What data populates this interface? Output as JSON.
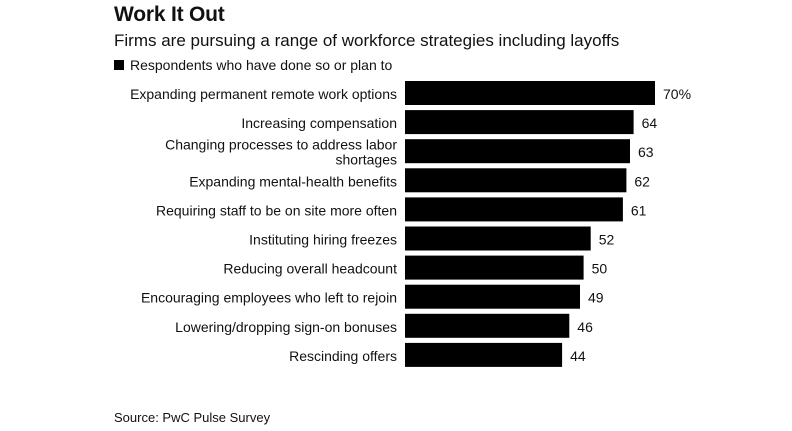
{
  "title": "Work It Out",
  "subtitle": "Firms are pursuing a range of workforce strategies including layoffs",
  "legend_label": "Respondents who have done so or plan to",
  "source": "Source: PwC Pulse Survey",
  "colors": {
    "bar": "#000000",
    "text": "#111111",
    "background": "#ffffff"
  },
  "chart_data": {
    "type": "bar",
    "orientation": "horizontal",
    "title": "Work It Out",
    "subtitle": "Firms are pursuing a range of workforce strategies including layoffs",
    "categories": [
      [
        "Expanding permanent remote work options"
      ],
      [
        "Increasing compensation"
      ],
      [
        "Changing processes to address labor",
        "shortages"
      ],
      [
        "Expanding mental-health benefits"
      ],
      [
        "Requiring staff to be on site more often"
      ],
      [
        "Instituting hiring freezes"
      ],
      [
        "Reducing overall headcount"
      ],
      [
        "Encouraging employees who left to rejoin"
      ],
      [
        "Lowering/dropping sign-on bonuses"
      ],
      [
        "Rescinding offers"
      ]
    ],
    "series": [
      {
        "name": "Respondents who have done so or plan to",
        "values": [
          70,
          64,
          63,
          62,
          61,
          52,
          50,
          49,
          46,
          44
        ]
      }
    ],
    "value_labels": [
      "70%",
      "64",
      "63",
      "62",
      "61",
      "52",
      "50",
      "49",
      "46",
      "44"
    ],
    "xlim": [
      0,
      70
    ],
    "grid": false,
    "legend_position": "top-left"
  }
}
